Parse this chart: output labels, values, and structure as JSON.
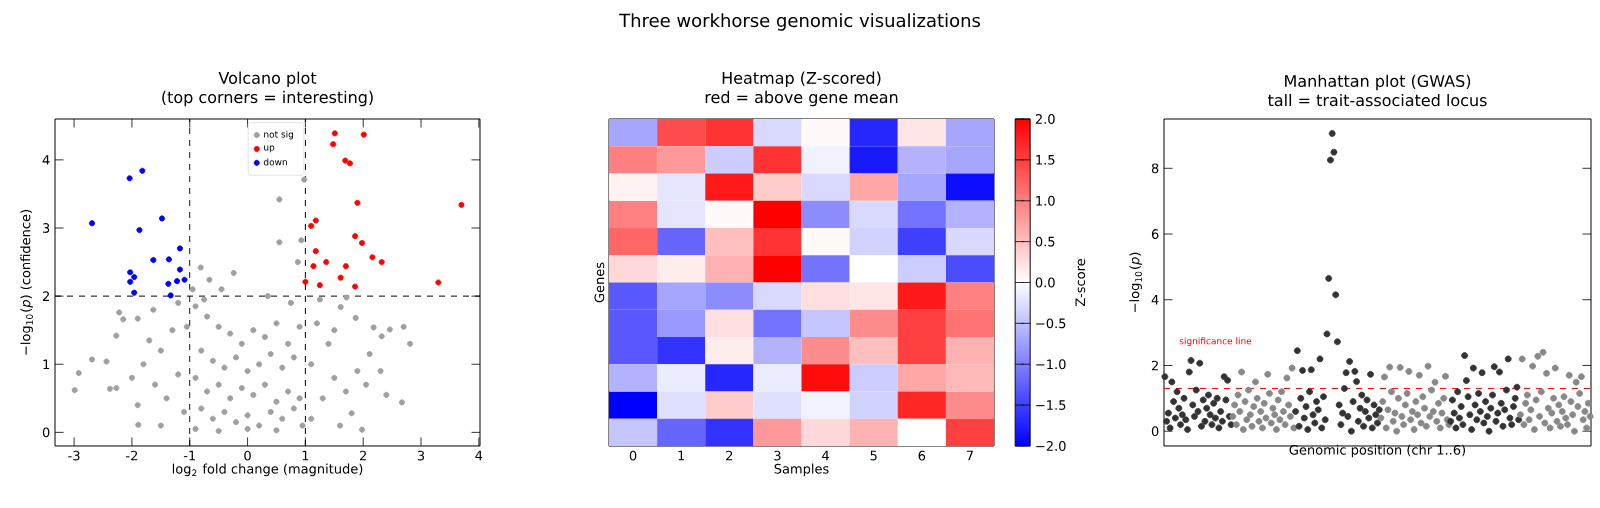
{
  "chart_data": [
    {
      "type": "scatter",
      "title": "Volcano plot",
      "subtitle": "(top corners = interesting)",
      "annotations": [
        "Three workhorse genomic visualizations"
      ],
      "xlabel": "log$_{2}$ fold change  (magnitude)",
      "ylabel": "−log$_{10}$(*p*)  (confidence)",
      "xlim": [
        -3.33,
        4.02
      ],
      "ylim": [
        -0.2,
        4.6
      ],
      "xticks": [
        -3,
        -2,
        -1,
        0,
        1,
        2,
        3,
        4
      ],
      "yticks": [
        0,
        1,
        2,
        3,
        4
      ],
      "legend": "top",
      "marker": "circle",
      "grid": false,
      "ref_lines": [
        {
          "axis": "x",
          "value": -1,
          "color": "#000000",
          "line_style": "dashed"
        },
        {
          "axis": "x",
          "value": 1,
          "color": "#000000",
          "line_style": "dashed"
        },
        {
          "axis": "y",
          "value": 2,
          "color": "#000000",
          "line_style": "dashed"
        }
      ],
      "series": [
        {
          "name": "not sig",
          "color": "#a0a0a0",
          "x": [
            0.55,
            0.98,
            0.55,
            0.93,
            0.87,
            -0.81,
            -0.24,
            -0.66,
            -2.99,
            -2.92,
            -2.69,
            -2.22,
            -2.15,
            -2.27,
            2.67,
            2.81,
            2.7,
            2.46,
            2.32,
            2.18,
            1.87,
            1.71,
            1.61,
            -1.63,
            -2.44,
            -2.38,
            -2.27,
            -1.9,
            -1.89,
            1.98,
            1.8,
            2.05,
            2.11,
            -0.9,
            -0.7,
            -0.5,
            -0.3,
            -0.1,
            0.1,
            0.3,
            0.5,
            0.7,
            0.9,
            -0.8,
            -0.6,
            -0.4,
            -0.2,
            0.0,
            0.2,
            0.4,
            0.6,
            0.8,
            -0.9,
            -0.7,
            -0.5,
            -0.3,
            -0.1,
            0.1,
            0.3,
            0.5,
            0.7,
            0.9,
            -0.8,
            -0.6,
            -0.4,
            -0.2,
            0.0,
            0.2,
            0.4,
            0.6,
            0.8,
            -0.9,
            -0.5,
            0.0,
            0.5,
            0.95,
            -0.95,
            -0.75,
            0.35,
            -0.45,
            0.75,
            -1.3,
            -1.5,
            -1.8,
            -1.2,
            -1.6,
            -1.4,
            -1.9,
            -1.1,
            -1.5,
            -2.0,
            -1.7,
            -1.2,
            -1.05,
            1.2,
            1.4,
            1.1,
            1.5,
            1.3,
            1.7,
            1.1,
            1.6,
            1.9,
            1.5,
            1.25,
            2.3,
            2.4
          ],
          "values": [
            3.42,
            3.71,
            2.79,
            2.82,
            2.5,
            2.42,
            2.34,
            2.24,
            0.62,
            0.87,
            1.07,
            1.76,
            1.66,
            1.42,
            0.44,
            1.3,
            1.55,
            1.51,
            1.41,
            1.54,
            1.68,
            1.98,
            1.84,
            1.8,
            1.04,
            0.64,
            0.65,
            1.67,
            0.11,
            0.04,
            0.28,
            0.7,
            1.15,
            1.85,
            1.7,
            1.55,
            1.45,
            1.3,
            1.5,
            1.4,
            1.6,
            1.3,
            1.55,
            1.2,
            1.05,
            0.95,
            1.1,
            0.9,
            1.0,
            1.15,
            0.95,
            1.1,
            0.8,
            0.6,
            0.7,
            0.5,
            0.65,
            0.55,
            0.7,
            0.45,
            0.6,
            0.5,
            0.35,
            0.2,
            0.3,
            0.15,
            0.25,
            0.1,
            0.3,
            0.2,
            0.35,
            0.05,
            0.02,
            0.05,
            0.03,
            0.1,
            2.1,
            1.95,
            2.0,
            2.1,
            1.9,
            1.5,
            1.2,
            1.0,
            0.85,
            0.7,
            0.5,
            0.4,
            0.3,
            0.1,
            0.8,
            1.35,
            1.9,
            1.55,
            1.6,
            1.3,
            1.0,
            0.8,
            0.5,
            0.6,
            0.2,
            0.1,
            0.9,
            1.5,
            1.95,
            0.9,
            0.55
          ]
        },
        {
          "name": "up",
          "color": "#ff0000",
          "x": [
            1.51,
            2.01,
            1.48,
            1.69,
            1.77,
            1.9,
            3.7,
            1.18,
            1.1,
            1.86,
            1.98,
            1.18,
            2.16,
            2.32,
            1.36,
            1.14,
            1.7,
            1.61,
            1.0,
            3.3,
            1.25,
            1.86
          ],
          "values": [
            4.39,
            4.37,
            4.23,
            3.99,
            3.95,
            3.37,
            3.34,
            3.11,
            3.03,
            2.88,
            2.78,
            2.66,
            2.57,
            2.5,
            2.5,
            2.44,
            2.44,
            2.27,
            2.21,
            2.2,
            2.16,
            2.14
          ]
        },
        {
          "name": "down",
          "color": "#0000ff",
          "x": [
            -1.82,
            -2.04,
            -2.69,
            -1.48,
            -1.87,
            -1.17,
            -1.63,
            -1.36,
            -1.17,
            -2.03,
            -1.96,
            -2.03,
            -1.09,
            -1.22,
            -1.37,
            -1.96,
            -1.33
          ],
          "values": [
            3.84,
            3.73,
            3.07,
            3.14,
            2.97,
            2.7,
            2.53,
            2.54,
            2.39,
            2.35,
            2.28,
            2.21,
            2.24,
            2.22,
            2.18,
            2.05,
            2.01
          ]
        }
      ]
    },
    {
      "type": "heatmap",
      "title": "Heatmap (Z-scored)",
      "subtitle": "red = above gene mean",
      "xlabel": "Samples",
      "ylabel": "Genes",
      "clabel": "Z-score",
      "categories": [
        "0",
        "1",
        "2",
        "3",
        "4",
        "5",
        "6",
        "7"
      ],
      "y_categories": [
        null,
        null,
        null,
        null,
        null,
        null,
        null,
        null,
        null,
        null,
        null,
        null
      ],
      "clim": [
        -2,
        2
      ],
      "cticks": [
        {
          "value": -2,
          "label": "−2.0"
        },
        {
          "value": -1.5,
          "label": "−1.5"
        },
        {
          "value": -1,
          "label": "−1.0"
        },
        {
          "value": -0.5,
          "label": "−0.5"
        },
        {
          "value": 0,
          "label": "0.0"
        },
        {
          "value": 0.5,
          "label": "0.5"
        },
        {
          "value": 1,
          "label": "1.0"
        },
        {
          "value": 1.5,
          "label": "1.5"
        },
        {
          "value": 2,
          "label": "2.0"
        }
      ],
      "cells": [
        [
          -0.7,
          1.4,
          1.6,
          -0.3,
          0.05,
          -1.7,
          0.2,
          -0.7
        ],
        [
          1.0,
          0.8,
          -0.4,
          1.6,
          -0.1,
          -1.8,
          -0.6,
          -0.7
        ],
        [
          0.1,
          -0.2,
          1.8,
          0.4,
          -0.3,
          0.7,
          -0.7,
          -1.9
        ],
        [
          1.0,
          -0.2,
          0.05,
          2.0,
          -0.9,
          -0.3,
          -1.1,
          -0.6
        ],
        [
          1.2,
          -1.2,
          0.5,
          1.6,
          0.05,
          -0.35,
          -1.5,
          -0.3
        ],
        [
          0.3,
          0.15,
          0.6,
          2.0,
          -1.1,
          0.0,
          -0.4,
          -1.4
        ],
        [
          -1.3,
          -0.7,
          -0.9,
          -0.3,
          0.25,
          0.2,
          1.8,
          1.0
        ],
        [
          -1.3,
          -0.8,
          0.25,
          -1.1,
          -0.45,
          0.9,
          1.5,
          1.1
        ],
        [
          -1.3,
          -1.6,
          0.15,
          -0.6,
          0.9,
          0.5,
          1.5,
          0.6
        ],
        [
          -0.6,
          -0.15,
          -1.7,
          -0.15,
          1.9,
          -0.4,
          0.7,
          0.55
        ],
        [
          -2.0,
          -0.25,
          0.4,
          -0.25,
          -0.1,
          -0.35,
          1.7,
          0.9
        ],
        [
          -0.45,
          -1.2,
          -1.6,
          0.8,
          0.3,
          0.6,
          0.0,
          1.5
        ]
      ]
    },
    {
      "type": "scatter",
      "title": "Manhattan plot (GWAS)",
      "subtitle": "tall = trait-associated locus",
      "xlabel": "Genomic position (chr 1..6)",
      "ylabel": "−log$_{10}$(*p*)",
      "ylim": [
        -0.45,
        9.5
      ],
      "yticks": [
        0,
        2,
        4,
        6,
        8
      ],
      "marker": "circle",
      "categories": [
        null,
        null,
        null,
        null,
        null,
        null,
        null,
        null,
        null,
        null,
        null,
        null,
        null,
        null,
        null,
        null,
        null,
        null,
        null,
        null,
        null,
        null,
        null,
        null,
        null,
        null,
        null,
        null,
        null,
        null,
        null,
        null,
        null,
        null,
        null,
        null,
        null,
        null,
        null,
        null,
        null,
        null,
        null,
        null,
        null,
        null,
        null,
        null,
        null,
        null,
        null,
        null,
        null,
        null,
        null,
        null,
        null,
        null,
        null,
        null,
        null,
        null,
        null,
        null,
        null,
        null,
        null,
        null,
        null,
        null,
        null,
        null,
        null,
        null,
        null,
        null,
        null,
        null,
        null,
        null,
        null,
        null,
        null,
        null,
        null,
        null,
        null,
        null,
        null,
        null,
        null,
        null,
        null,
        null,
        null,
        null,
        null,
        null,
        null,
        null,
        null,
        null,
        null,
        null,
        null,
        null,
        null,
        null,
        null,
        null,
        null,
        null,
        null,
        null,
        null,
        null,
        null,
        null,
        null,
        null,
        null,
        null,
        null,
        null,
        null,
        null,
        null,
        null,
        null,
        null,
        null,
        null,
        null,
        null,
        null,
        null,
        null,
        null,
        null,
        null,
        null,
        null,
        null,
        null,
        null,
        null,
        null,
        null,
        null,
        null,
        null,
        null,
        null,
        null,
        null,
        null,
        null,
        null,
        null,
        null,
        null,
        null,
        null,
        null,
        null,
        null,
        null,
        null,
        null,
        null,
        null,
        null,
        null,
        null,
        null,
        null,
        null,
        null,
        null,
        null,
        null,
        null,
        null,
        null,
        null,
        null,
        null,
        null,
        null,
        null,
        null,
        null,
        null,
        null,
        null,
        null,
        null,
        null,
        null,
        null,
        null,
        null,
        null,
        null,
        null,
        null,
        null,
        null,
        null,
        null,
        null,
        null,
        null,
        null,
        null,
        null,
        null,
        null,
        null,
        null,
        null,
        null,
        null,
        null,
        null,
        null,
        null,
        null,
        null,
        null,
        null,
        null,
        null,
        null,
        null,
        null,
        null,
        null,
        null,
        null,
        null,
        null,
        null,
        null,
        null
      ],
      "ref_lines": [
        {
          "axis": "y",
          "value": 1.3,
          "label": "significance line",
          "color": "#ff0000",
          "line_style": "dashed"
        }
      ],
      "series": [
        {
          "values": [
            1.66,
            0.3,
            0.55,
            0.1,
            1.5,
            0.9,
            0.4,
            1.2,
            0.7,
            0.2,
            0.5,
            1.0,
            0.35,
            0.05,
            1.8,
            2.15,
            0.8,
            0.45,
            1.25,
            0.6,
            2.07,
            0.15,
            0.95,
            0.3,
            0.7,
            1.1,
            0.5,
            0.2,
            0.85,
            0.4,
            1.0,
            0.1,
            0.6,
            0.3,
            1.66,
            0.95,
            1.55,
            0.45,
            0.2,
            0.45,
            0.8,
            0.2,
            1.1,
            0.6,
            1.8,
            0.05,
            0.9,
            0.35,
            1.25,
            0.5,
            0.15,
            0.75,
            1.5,
            1.0,
            0.3,
            0.6,
            0.1,
            0.85,
            0.4,
            1.73,
            1.15,
            0.25,
            0.7,
            0.5,
            0.05,
            0.95,
            0.35,
            1.2,
            0.6,
            0.2,
            1.62,
            0.8,
            0.45,
            1.92,
            0.1,
            0.6,
            2.45,
            0.15,
            1.0,
            1.85,
            0.4,
            0.75,
            0.05,
            1.2,
            1.87,
            0.5,
            0.25,
            0.9,
            0.65,
            2.2,
            0.1,
            1.05,
            0.35,
            2.96,
            4.65,
            8.25,
            9.06,
            8.49,
            4.15,
            2.72,
            0.8,
            0.2,
            0.55,
            1.3,
            1.78,
            0.45,
            2.12,
            0.0,
            0.9,
            1.82,
            1.51,
            0.3,
            0.7,
            1.1,
            0.15,
            0.6,
            0.95,
            0.4,
            1.73,
            0.1,
            0.8,
            0.5,
            0.25,
            0.65,
            0.4,
            0.9,
            1.65,
            0.1,
            0.65,
            1.95,
            1.2,
            0.3,
            0.55,
            0.0,
            1.0,
            1.94,
            0.45,
            0.2,
            0.8,
            1.15,
            1.82,
            0.35,
            0.6,
            0.05,
            0.9,
            0.5,
            1.7,
            0.25,
            1.05,
            0.7,
            0.15,
            1.98,
            0.45,
            1.25,
            0.6,
            1.49,
            0.3,
            0.85,
            0.1,
            0.55,
            1.0,
            1.67,
            0.35,
            0.2,
            0.3,
            0.95,
            0.55,
            0.1,
            1.2,
            0.4,
            0.75,
            0.2,
            2.3,
            1.54,
            1.05,
            0.5,
            0.05,
            1.92,
            0.8,
            0.35,
            1.15,
            0.6,
            1.78,
            0.25,
            0.9,
            0.45,
            0.0,
            0.7,
            1.1,
            1.96,
            0.3,
            0.55,
            1.8,
            0.85,
            0.15,
            0.65,
            1.25,
            2.2,
            0.4,
            0.2,
            0.75,
            1.0,
            1.34,
            0.35,
            0.5,
            2.2,
            0.2,
            0.85,
            1.1,
            0.35,
            0.65,
            1.98,
            0.05,
            0.95,
            2.28,
            0.45,
            1.2,
            2.4,
            0.25,
            1.76,
            0.7,
            0.1,
            0.55,
            1.0,
            1.92,
            0.3,
            0.8,
            0.15,
            0.6,
            1.05,
            0.4,
            0.2,
            1.7,
            0.9,
            0.5,
            0.0,
            1.49,
            0.75,
            1.15,
            1.66,
            0.35,
            0.6,
            0.1,
            0.85,
            0.45
          ],
          "colors": [
            "#333333",
            "#333333",
            "#333333",
            "#333333",
            "#333333",
            "#333333",
            "#333333",
            "#333333",
            "#333333",
            "#333333",
            "#333333",
            "#333333",
            "#333333",
            "#333333",
            "#333333",
            "#333333",
            "#333333",
            "#333333",
            "#333333",
            "#333333",
            "#333333",
            "#333333",
            "#333333",
            "#333333",
            "#333333",
            "#333333",
            "#333333",
            "#333333",
            "#333333",
            "#333333",
            "#333333",
            "#333333",
            "#333333",
            "#333333",
            "#333333",
            "#333333",
            "#333333",
            "#333333",
            "#333333",
            "#888888",
            "#888888",
            "#888888",
            "#888888",
            "#888888",
            "#888888",
            "#888888",
            "#888888",
            "#888888",
            "#888888",
            "#888888",
            "#888888",
            "#888888",
            "#888888",
            "#888888",
            "#888888",
            "#888888",
            "#888888",
            "#888888",
            "#888888",
            "#888888",
            "#888888",
            "#888888",
            "#888888",
            "#888888",
            "#888888",
            "#888888",
            "#888888",
            "#888888",
            "#888888",
            "#888888",
            "#888888",
            "#888888",
            "#888888",
            "#888888",
            "#888888",
            "#333333",
            "#333333",
            "#333333",
            "#333333",
            "#333333",
            "#333333",
            "#333333",
            "#333333",
            "#333333",
            "#333333",
            "#333333",
            "#333333",
            "#333333",
            "#333333",
            "#333333",
            "#333333",
            "#333333",
            "#333333",
            "#333333",
            "#333333",
            "#333333",
            "#333333",
            "#333333",
            "#333333",
            "#333333",
            "#333333",
            "#333333",
            "#333333",
            "#333333",
            "#333333",
            "#333333",
            "#333333",
            "#333333",
            "#333333",
            "#333333",
            "#333333",
            "#333333",
            "#333333",
            "#333333",
            "#333333",
            "#333333",
            "#333333",
            "#333333",
            "#333333",
            "#333333",
            "#333333",
            "#333333",
            "#333333",
            "#333333",
            "#888888",
            "#888888",
            "#888888",
            "#888888",
            "#888888",
            "#888888",
            "#888888",
            "#888888",
            "#888888",
            "#888888",
            "#888888",
            "#888888",
            "#888888",
            "#888888",
            "#888888",
            "#888888",
            "#888888",
            "#888888",
            "#888888",
            "#888888",
            "#888888",
            "#888888",
            "#888888",
            "#888888",
            "#888888",
            "#888888",
            "#888888",
            "#888888",
            "#888888",
            "#888888",
            "#888888",
            "#888888",
            "#888888",
            "#888888",
            "#888888",
            "#888888",
            "#888888",
            "#888888",
            "#888888",
            "#888888",
            "#333333",
            "#333333",
            "#333333",
            "#333333",
            "#333333",
            "#333333",
            "#333333",
            "#333333",
            "#333333",
            "#333333",
            "#333333",
            "#333333",
            "#333333",
            "#333333",
            "#333333",
            "#333333",
            "#333333",
            "#333333",
            "#333333",
            "#333333",
            "#333333",
            "#333333",
            "#333333",
            "#333333",
            "#333333",
            "#333333",
            "#333333",
            "#333333",
            "#333333",
            "#333333",
            "#333333",
            "#333333",
            "#333333",
            "#333333",
            "#333333",
            "#333333",
            "#333333",
            "#333333",
            "#333333",
            "#333333",
            "#888888",
            "#888888",
            "#888888",
            "#888888",
            "#888888",
            "#888888",
            "#888888",
            "#888888",
            "#888888",
            "#888888",
            "#888888",
            "#888888",
            "#888888",
            "#888888",
            "#888888",
            "#888888",
            "#888888",
            "#888888",
            "#888888",
            "#888888",
            "#888888",
            "#888888",
            "#888888",
            "#888888",
            "#888888",
            "#888888",
            "#888888",
            "#888888",
            "#888888",
            "#888888",
            "#888888",
            "#888888",
            "#888888",
            "#888888",
            "#888888",
            "#888888",
            "#888888",
            "#888888",
            "#888888",
            "#888888",
            "#888888"
          ]
        }
      ]
    }
  ]
}
